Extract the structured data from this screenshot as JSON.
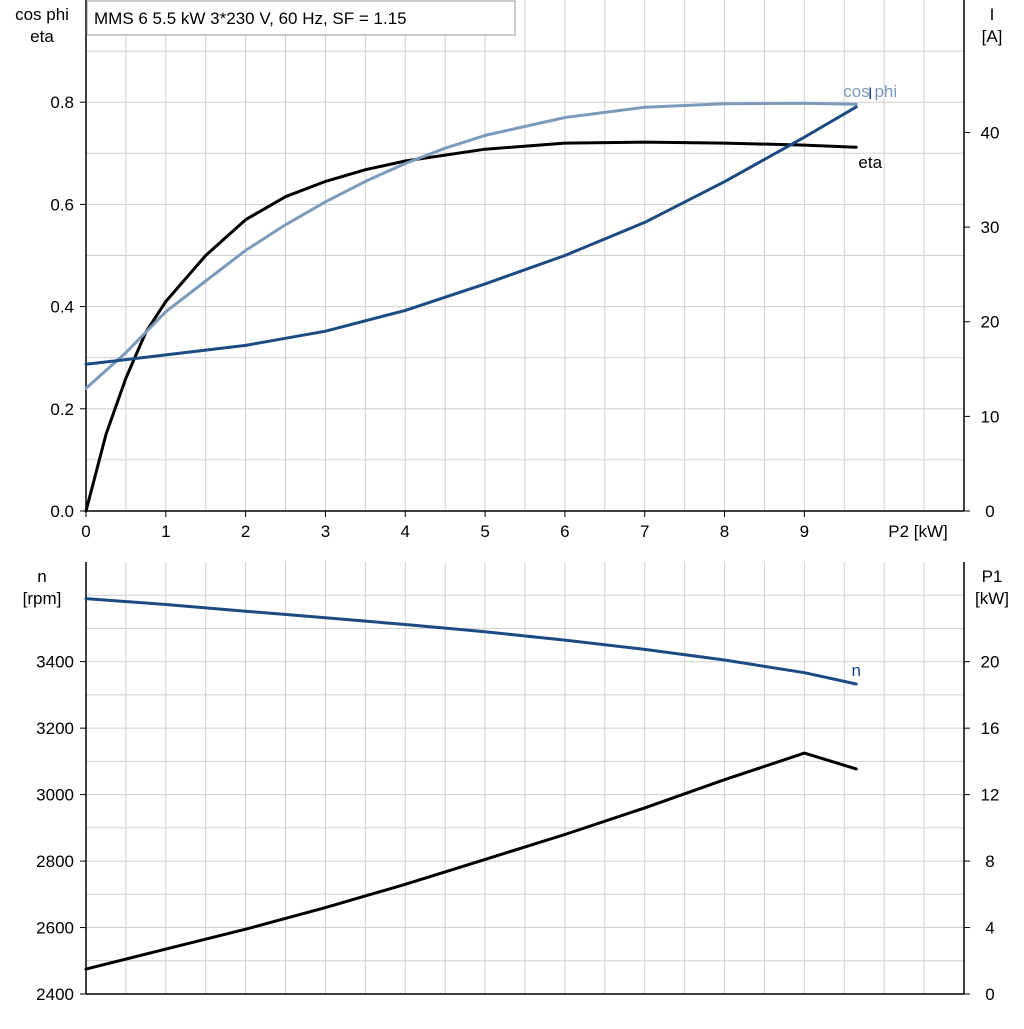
{
  "chart_data": [
    {
      "type": "line",
      "title": "MMS 6   5.5 kW   3*230 V, 60 Hz, SF = 1.15",
      "xlabel": "P2 [kW]",
      "ylabel_left": [
        "cos phi",
        "eta"
      ],
      "ylabel_right": [
        "I",
        "[A]"
      ],
      "xlim": [
        0,
        11
      ],
      "ylim_left": [
        0,
        1.0
      ],
      "ylim_right": [
        0,
        54
      ],
      "x_ticks": [
        0,
        1,
        2,
        3,
        4,
        5,
        6,
        7,
        8,
        9
      ],
      "y_ticks_left": [
        "0.0",
        "0.2",
        "0.4",
        "0.6",
        "0.8"
      ],
      "y_ticks_right": [
        "0",
        "10",
        "20",
        "30",
        "40"
      ],
      "grid": true,
      "series": [
        {
          "name": "eta",
          "axis": "left",
          "color": "#000000",
          "x": [
            0,
            0.25,
            0.5,
            0.75,
            1,
            1.5,
            2,
            2.5,
            3,
            3.5,
            4,
            5,
            6,
            7,
            8,
            9,
            9.65
          ],
          "y": [
            0.0,
            0.15,
            0.26,
            0.35,
            0.41,
            0.5,
            0.57,
            0.615,
            0.645,
            0.668,
            0.685,
            0.708,
            0.72,
            0.722,
            0.72,
            0.716,
            0.712
          ]
        },
        {
          "name": "cos phi",
          "axis": "left",
          "color": "#7a9bbc",
          "x": [
            0,
            0.5,
            1,
            1.5,
            2,
            2.5,
            3,
            3.5,
            4,
            4.5,
            5,
            6,
            7,
            8,
            9,
            9.65
          ],
          "y": [
            0.24,
            0.31,
            0.39,
            0.45,
            0.51,
            0.56,
            0.605,
            0.645,
            0.68,
            0.71,
            0.735,
            0.77,
            0.79,
            0.797,
            0.798,
            0.796
          ]
        },
        {
          "name": "I",
          "axis": "right",
          "color": "#1b4b82",
          "x": [
            0,
            1,
            2,
            3,
            4,
            5,
            6,
            7,
            8,
            9,
            9.65
          ],
          "y": [
            15.5,
            16.5,
            17.5,
            19.0,
            21.2,
            24.0,
            27.0,
            30.5,
            34.8,
            39.5,
            42.7
          ]
        }
      ],
      "curve_labels": [
        {
          "text": "I",
          "series": "I"
        },
        {
          "text": "cos phi",
          "series": "cos phi"
        },
        {
          "text": "eta",
          "series": "eta"
        }
      ]
    },
    {
      "type": "line",
      "xlim": [
        0,
        11
      ],
      "ylabel_left": [
        "n",
        "[rpm]"
      ],
      "ylabel_right": [
        "P1",
        "[kW]"
      ],
      "ylim_left": [
        2400,
        3700
      ],
      "ylim_right": [
        0,
        26
      ],
      "y_ticks_left": [
        "2400",
        "2600",
        "2800",
        "3000",
        "3200",
        "3400"
      ],
      "y_ticks_right": [
        "0",
        "4",
        "8",
        "12",
        "16",
        "20"
      ],
      "grid": true,
      "series": [
        {
          "name": "n",
          "axis": "left",
          "color": "#1b4b82",
          "x": [
            0,
            1,
            2,
            3,
            4,
            5,
            6,
            7,
            8,
            9,
            9.65
          ],
          "y": [
            3590,
            3572,
            3552,
            3532,
            3512,
            3490,
            3465,
            3437,
            3405,
            3367,
            3333
          ]
        },
        {
          "name": "P1",
          "axis": "right",
          "color": "#000000",
          "x": [
            0,
            1,
            2,
            3,
            4,
            5,
            6,
            7,
            8,
            9,
            9.65
          ],
          "y": [
            1.5,
            2.7,
            3.9,
            5.2,
            6.6,
            8.1,
            9.6,
            11.2,
            12.9,
            14.5,
            13.55
          ]
        }
      ],
      "curve_labels": [
        {
          "text": "n",
          "series": "n"
        }
      ]
    }
  ]
}
